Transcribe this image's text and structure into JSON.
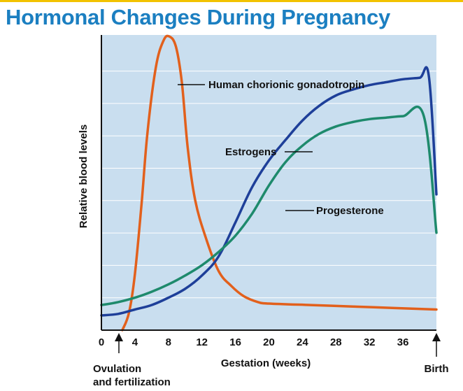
{
  "title": "Hormonal Changes During Pregnancy",
  "chart_data": {
    "type": "line",
    "xlabel": "Gestation (weeks)",
    "ylabel": "Relative blood levels",
    "xlim": [
      0,
      40
    ],
    "ylim": [
      0,
      10
    ],
    "x_ticks": [
      0,
      4,
      8,
      12,
      16,
      20,
      24,
      28,
      32,
      36
    ],
    "y_ticks_shown": false,
    "grid": "horizontal",
    "series": [
      {
        "name": "Human chorionic gonadotropin",
        "color": "#e2601c",
        "points": [
          [
            2.5,
            0
          ],
          [
            3.3,
            0.6
          ],
          [
            4,
            1.9
          ],
          [
            4.8,
            4.3
          ],
          [
            5.5,
            6.7
          ],
          [
            6.5,
            8.9
          ],
          [
            7.4,
            9.8
          ],
          [
            8.1,
            9.95
          ],
          [
            8.9,
            9.6
          ],
          [
            9.6,
            8.4
          ],
          [
            10.3,
            6.2
          ],
          [
            11.2,
            4.4
          ],
          [
            12.5,
            3.1
          ],
          [
            14,
            2.0
          ],
          [
            15.5,
            1.5
          ],
          [
            17,
            1.15
          ],
          [
            18.7,
            0.95
          ],
          [
            20,
            0.9
          ],
          [
            25,
            0.85
          ],
          [
            30,
            0.8
          ],
          [
            35,
            0.75
          ],
          [
            40,
            0.7
          ]
        ]
      },
      {
        "name": "Estrogens",
        "color": "#1e3f99",
        "points": [
          [
            0,
            0.5
          ],
          [
            2,
            0.55
          ],
          [
            4,
            0.7
          ],
          [
            6,
            0.85
          ],
          [
            8,
            1.1
          ],
          [
            10,
            1.4
          ],
          [
            12,
            1.85
          ],
          [
            14,
            2.5
          ],
          [
            16,
            3.65
          ],
          [
            18,
            4.85
          ],
          [
            20,
            5.75
          ],
          [
            22,
            6.45
          ],
          [
            24,
            7.1
          ],
          [
            26,
            7.6
          ],
          [
            28,
            7.95
          ],
          [
            30,
            8.15
          ],
          [
            32,
            8.3
          ],
          [
            34,
            8.4
          ],
          [
            36,
            8.5
          ],
          [
            38,
            8.55
          ],
          [
            39.1,
            8.6
          ],
          [
            40,
            4.6
          ]
        ]
      },
      {
        "name": "Progesterone",
        "color": "#1e8a6c",
        "points": [
          [
            0,
            0.85
          ],
          [
            2,
            0.95
          ],
          [
            4,
            1.1
          ],
          [
            6,
            1.3
          ],
          [
            8,
            1.55
          ],
          [
            10,
            1.85
          ],
          [
            12,
            2.2
          ],
          [
            14,
            2.65
          ],
          [
            16,
            3.2
          ],
          [
            18,
            3.95
          ],
          [
            20,
            4.9
          ],
          [
            22,
            5.7
          ],
          [
            24,
            6.25
          ],
          [
            26,
            6.65
          ],
          [
            28,
            6.9
          ],
          [
            30,
            7.05
          ],
          [
            32,
            7.15
          ],
          [
            34,
            7.2
          ],
          [
            36,
            7.25
          ],
          [
            38.5,
            7.25
          ],
          [
            40,
            3.3
          ]
        ]
      }
    ],
    "annotations": [
      {
        "text": "Ovulation",
        "x": 2.5
      },
      {
        "text": "and fertilization",
        "x": 2.5
      },
      {
        "text": "Birth",
        "x": 40
      }
    ]
  }
}
